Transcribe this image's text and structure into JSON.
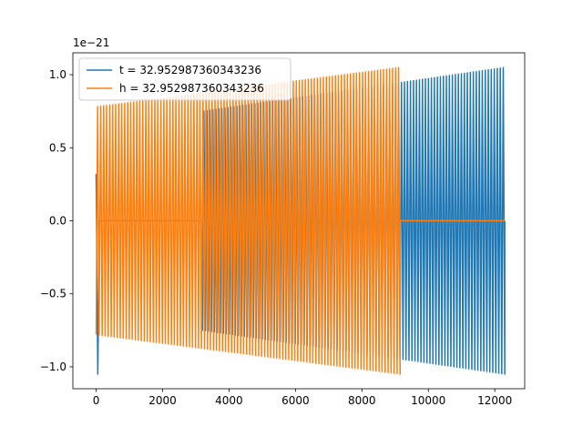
{
  "chart_data": {
    "type": "line",
    "offset_text": "1e−21",
    "xlim": [
      -700,
      12900
    ],
    "ylim": [
      -1.15,
      1.15
    ],
    "xticks": [
      0,
      2000,
      4000,
      6000,
      8000,
      10000,
      12000
    ],
    "xtick_labels": [
      "0",
      "2000",
      "4000",
      "6000",
      "8000",
      "10000",
      "12000"
    ],
    "yticks": [
      -1.0,
      -0.5,
      0.0,
      0.5,
      1.0
    ],
    "ytick_labels": [
      "−1.0",
      "−0.5",
      "0.0",
      "0.5",
      "1.0"
    ],
    "grid": false,
    "legend_position": "top-left",
    "series": [
      {
        "name": "t = 32.952987360343236",
        "color": "#1f77b4",
        "segments": [
          {
            "x_start": 0,
            "x_end": 100,
            "kind": "spike",
            "y_start": 0.32,
            "y_min": -1.05
          },
          {
            "x_start": 100,
            "x_end": 3200,
            "kind": "flat",
            "value": 0.0
          },
          {
            "x_start": 3200,
            "x_end": 12300,
            "kind": "oscillation",
            "amplitude_start": 0.75,
            "amplitude_end": 1.05,
            "cycles": 101
          }
        ]
      },
      {
        "name": "h = 32.952987360343236",
        "color": "#ff7f0e",
        "segments": [
          {
            "x_start": 0,
            "x_end": 9150,
            "kind": "oscillation",
            "amplitude_start": 0.78,
            "amplitude_end": 1.05,
            "cycles": 101
          },
          {
            "x_start": 9150,
            "x_end": 12300,
            "kind": "flat",
            "value": 0.0
          }
        ]
      }
    ]
  }
}
